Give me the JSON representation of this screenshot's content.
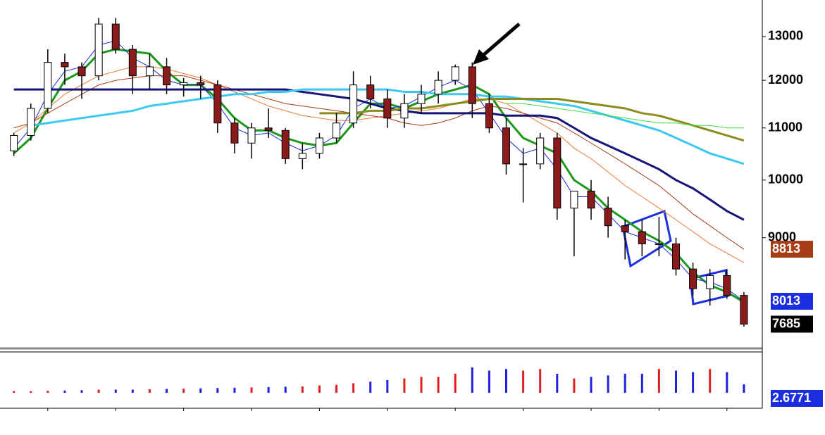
{
  "chart_data": {
    "type": "candlestick",
    "x": [
      2000.5,
      2000.75,
      2001,
      2001.25,
      2001.5,
      2001.75,
      2002,
      2002.25,
      2002.5,
      2002.75,
      2003,
      2003.25,
      2003.5,
      2003.75,
      2004,
      2004.25,
      2004.5,
      2004.75,
      2005,
      2005.25,
      2005.5,
      2005.75,
      2006,
      2006.25,
      2006.5,
      2006.75,
      2007,
      2007.25,
      2007.5,
      2007.75,
      2008,
      2008.25,
      2008.5,
      2008.75,
      2009,
      2009.25,
      2009.5,
      2009.75,
      2010,
      2010.25,
      2010.5,
      2010.75,
      2011,
      2011.25
    ],
    "open": [
      10550,
      10850,
      11400,
      12400,
      12300,
      12100,
      13300,
      12700,
      12100,
      12300,
      11900,
      11950,
      11900,
      11100,
      10700,
      11000,
      10950,
      10400,
      10500,
      10800,
      11100,
      11900,
      11600,
      11200,
      11500,
      11700,
      12000,
      12300,
      11500,
      11000,
      10300,
      10300,
      10800,
      9500,
      9800,
      9500,
      9200,
      9100,
      8900,
      8900,
      8500,
      8200,
      8400,
      8100
    ],
    "high": [
      10900,
      11500,
      12700,
      12600,
      12400,
      13450,
      13450,
      12800,
      12600,
      12500,
      12050,
      12100,
      12000,
      11200,
      11100,
      11400,
      11000,
      10700,
      10900,
      11300,
      12200,
      12100,
      11800,
      11700,
      11900,
      12200,
      12350,
      12400,
      11700,
      11200,
      10600,
      10900,
      10900,
      9800,
      10000,
      9700,
      9300,
      9300,
      9350,
      9000,
      8600,
      8500,
      8500,
      8150
    ],
    "low": [
      10450,
      10750,
      11300,
      11900,
      11600,
      12000,
      12600,
      11700,
      11800,
      11700,
      11650,
      11600,
      10900,
      10500,
      10400,
      10800,
      10300,
      10200,
      10400,
      10700,
      11000,
      11400,
      11000,
      11000,
      11300,
      11500,
      11900,
      11200,
      10900,
      10100,
      9600,
      10200,
      9300,
      8700,
      9300,
      9000,
      8650,
      8700,
      8700,
      8400,
      8100,
      7950,
      8050,
      7650
    ],
    "close": [
      10850,
      11400,
      12400,
      12300,
      12100,
      13300,
      12700,
      12100,
      12300,
      11900,
      11950,
      11900,
      11100,
      10700,
      11000,
      10950,
      10400,
      10500,
      10800,
      11100,
      11900,
      11600,
      11200,
      11500,
      11700,
      12000,
      12300,
      11500,
      11000,
      10300,
      10300,
      10800,
      9500,
      9800,
      9500,
      9200,
      9100,
      8900,
      8900,
      8500,
      8200,
      8400,
      8100,
      7685
    ],
    "up_color": "#ffffff",
    "down_color": "#8b1a1a",
    "close_label_color": "#000000",
    "series": [
      {
        "color": "#1a9a1a",
        "width": 3,
        "values": [
          10500,
          10800,
          11400,
          12000,
          12200,
          12600,
          12700,
          12650,
          12600,
          12200,
          11900,
          11900,
          11600,
          11200,
          10950,
          10950,
          10800,
          10700,
          10650,
          10700,
          11100,
          11500,
          11500,
          11400,
          11550,
          11700,
          11800,
          11900,
          11700,
          11200,
          10800,
          10650,
          10500,
          10000,
          9800,
          9500,
          9300,
          9100,
          8950,
          8750,
          8450,
          8250,
          8150,
          8000
        ]
      },
      {
        "color": "#1a2ee0",
        "width": 1,
        "end_label": true,
        "values": [
          10600,
          11000,
          11700,
          12200,
          12300,
          12800,
          12900,
          12500,
          12300,
          12000,
          11900,
          11900,
          11500,
          11000,
          10850,
          10900,
          10700,
          10550,
          10650,
          10850,
          11400,
          11600,
          11400,
          11450,
          11650,
          11850,
          12000,
          11800,
          11300,
          10800,
          10500,
          10600,
          10200,
          9700,
          9700,
          9400,
          9100,
          9000,
          8900,
          8650,
          8350,
          8300,
          8200,
          8013
        ]
      },
      {
        "color": "#f07830",
        "width": 1,
        "values": [
          10900,
          11100,
          11400,
          11700,
          11900,
          12100,
          12200,
          12300,
          12300,
          12250,
          12150,
          12050,
          11900,
          11750,
          11600,
          11450,
          11350,
          11250,
          11200,
          11150,
          11150,
          11200,
          11250,
          11300,
          11350,
          11400,
          11500,
          11600,
          11600,
          11500,
          11300,
          11100,
          10900,
          10600,
          10400,
          10150,
          9900,
          9700,
          9500,
          9300,
          9100,
          8900,
          8750,
          8600
        ]
      },
      {
        "color": "#a83c14",
        "width": 1,
        "end_label": true,
        "values": [
          11000,
          11100,
          11300,
          11500,
          11700,
          11900,
          12000,
          12050,
          12100,
          12100,
          12100,
          12000,
          11900,
          11800,
          11700,
          11600,
          11500,
          11450,
          11400,
          11350,
          11300,
          11250,
          11200,
          11100,
          11050,
          11100,
          11200,
          11350,
          11450,
          11400,
          11300,
          11200,
          11100,
          10900,
          10700,
          10500,
          10300,
          10100,
          9900,
          9650,
          9400,
          9200,
          9000,
          8813
        ]
      },
      {
        "color": "#14147a",
        "width": 3,
        "values": [
          11800,
          11800,
          11800,
          11800,
          11800,
          11800,
          11800,
          11800,
          11800,
          11800,
          11800,
          11800,
          11800,
          11800,
          11800,
          11800,
          11800,
          11750,
          11700,
          11650,
          11600,
          11500,
          11400,
          11350,
          11300,
          11300,
          11300,
          11300,
          11300,
          11250,
          11250,
          11250,
          11200,
          11000,
          10800,
          10650,
          10500,
          10350,
          10200,
          10000,
          9850,
          9650,
          9450,
          9300
        ]
      },
      {
        "color": "#3cc8f0",
        "width": 3,
        "values": [
          null,
          11050,
          11100,
          11150,
          11200,
          11250,
          11300,
          11350,
          11450,
          11500,
          11550,
          11600,
          11650,
          11700,
          11700,
          11750,
          11750,
          11800,
          11800,
          11800,
          11800,
          11800,
          11800,
          11750,
          11750,
          11700,
          11700,
          11700,
          11650,
          11650,
          11600,
          11550,
          11500,
          11450,
          11350,
          11250,
          11150,
          11050,
          10950,
          10800,
          10650,
          10500,
          10400,
          10300
        ]
      },
      {
        "color": "#8c8c1e",
        "width": 3,
        "values": [
          null,
          null,
          null,
          null,
          null,
          null,
          null,
          null,
          null,
          null,
          null,
          null,
          null,
          null,
          null,
          null,
          null,
          null,
          11300,
          11300,
          11300,
          11350,
          11350,
          11400,
          11400,
          11450,
          11500,
          11550,
          11600,
          11600,
          11600,
          11600,
          11600,
          11550,
          11500,
          11450,
          11400,
          11300,
          11250,
          11150,
          11050,
          10950,
          10850,
          10750
        ]
      },
      {
        "color": "#40e040",
        "width": 1,
        "values": [
          null,
          null,
          null,
          null,
          null,
          null,
          null,
          null,
          null,
          null,
          null,
          null,
          null,
          null,
          null,
          null,
          null,
          null,
          null,
          null,
          null,
          null,
          null,
          null,
          null,
          null,
          null,
          null,
          null,
          11500,
          11500,
          11450,
          11400,
          11350,
          11300,
          11250,
          11200,
          11150,
          11100,
          11100,
          11050,
          11050,
          11000,
          11000
        ]
      }
    ],
    "volume": {
      "values": [
        0.5,
        0.5,
        0.6,
        0.7,
        0.8,
        1,
        1,
        1,
        1.1,
        1.2,
        1.3,
        1.4,
        1.5,
        1.6,
        1.7,
        1.8,
        1.9,
        2,
        2.3,
        2.5,
        3,
        3.5,
        4,
        4.5,
        5,
        5,
        6,
        8,
        7,
        7.5,
        7,
        7.5,
        6,
        4.5,
        5,
        5.5,
        6,
        6,
        7.5,
        7,
        6.5,
        7.5,
        6.5,
        2.6771
      ],
      "ylim": [
        0,
        12
      ],
      "up_color": "#e02020",
      "down_color": "#2020e0",
      "label_color": "#1a2ee0"
    },
    "xlim": [
      2000.4,
      2011.5
    ],
    "xticks": [
      2001,
      2002,
      2003,
      2004,
      2005,
      2006,
      2007,
      2008,
      2009,
      2010,
      2011
    ],
    "ylim": [
      7380,
      13720
    ],
    "yticks": [
      9000,
      10000,
      11000,
      12000,
      13000
    ],
    "log_scale": true
  }
}
